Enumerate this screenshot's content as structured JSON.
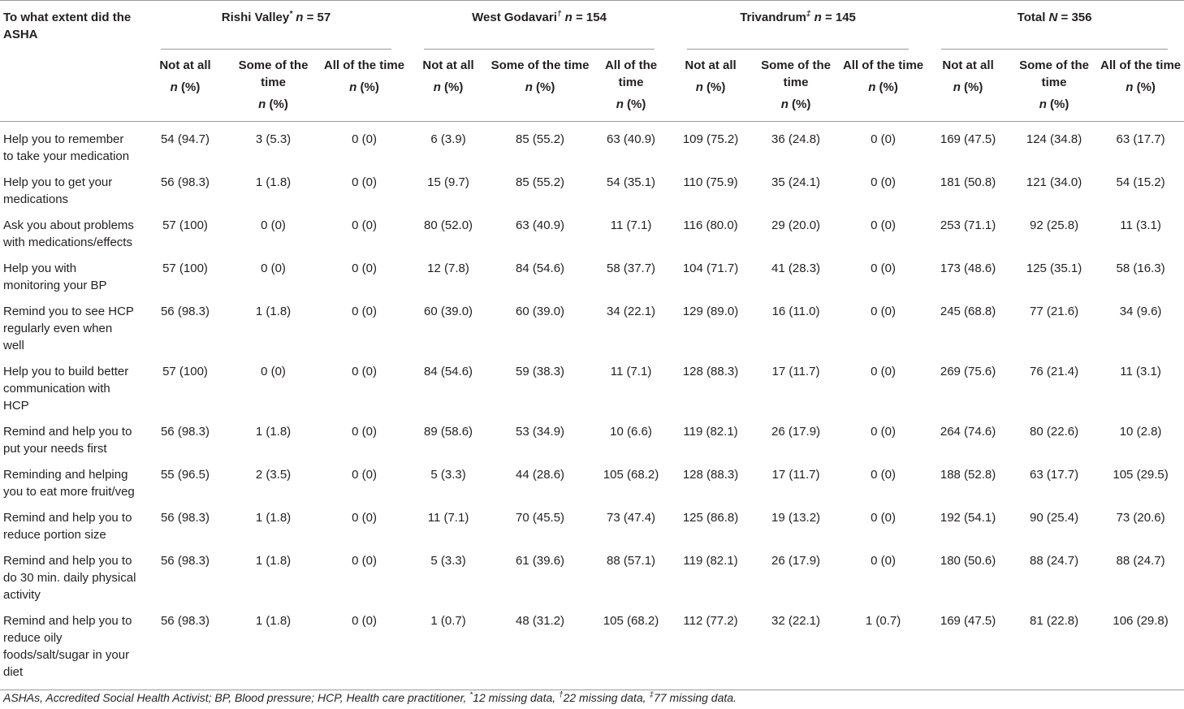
{
  "header": {
    "first_col": "To what extent did the ASHA",
    "groups": [
      {
        "name": "Rishi Valley",
        "mark": "*",
        "n_label": "n",
        "n_text": " = 57"
      },
      {
        "name": "West Godavari",
        "mark": "†",
        "n_label": "n",
        "n_text": " = 154"
      },
      {
        "name": "Trivandrum",
        "mark": "‡",
        "n_label": "n",
        "n_text": " = 145"
      },
      {
        "name": "Total ",
        "mark": "",
        "n_label": "N",
        "n_text": " = 356"
      }
    ],
    "sub": [
      "Not at all",
      "Some of the time",
      "All of the time"
    ],
    "npct_n": "n",
    "npct_pct": " (%)"
  },
  "rows": [
    {
      "label": "Help you to remember to take your medication",
      "values": [
        "54 (94.7)",
        "3 (5.3)",
        "0 (0)",
        "6 (3.9)",
        "85 (55.2)",
        "63 (40.9)",
        "109 (75.2)",
        "36 (24.8)",
        "0 (0)",
        "169 (47.5)",
        "124 (34.8)",
        "63 (17.7)"
      ]
    },
    {
      "label": "Help you to get your medications",
      "values": [
        "56 (98.3)",
        "1 (1.8)",
        "0 (0)",
        "15 (9.7)",
        "85 (55.2)",
        "54 (35.1)",
        "110 (75.9)",
        "35 (24.1)",
        "0 (0)",
        "181 (50.8)",
        "121 (34.0)",
        "54 (15.2)"
      ]
    },
    {
      "label": "Ask you about problems with medications/effects",
      "values": [
        "57 (100)",
        "0 (0)",
        "0 (0)",
        "80 (52.0)",
        "63 (40.9)",
        "11 (7.1)",
        "116 (80.0)",
        "29 (20.0)",
        "0 (0)",
        "253 (71.1)",
        "92 (25.8)",
        "11 (3.1)"
      ]
    },
    {
      "label": "Help you with monitoring your BP",
      "values": [
        "57 (100)",
        "0 (0)",
        "0 (0)",
        "12 (7.8)",
        "84 (54.6)",
        "58 (37.7)",
        "104 (71.7)",
        "41 (28.3)",
        "0 (0)",
        "173 (48.6)",
        "125 (35.1)",
        "58 (16.3)"
      ]
    },
    {
      "label": "Remind you to see HCP regularly even when well",
      "values": [
        "56 (98.3)",
        "1 (1.8)",
        "0 (0)",
        "60 (39.0)",
        "60 (39.0)",
        "34 (22.1)",
        "129 (89.0)",
        "16 (11.0)",
        "0 (0)",
        "245 (68.8)",
        "77 (21.6)",
        "34 (9.6)"
      ]
    },
    {
      "label": "Help you to build better communication with HCP",
      "values": [
        "57 (100)",
        "0 (0)",
        "0 (0)",
        "84 (54.6)",
        "59 (38.3)",
        "11 (7.1)",
        "128 (88.3)",
        "17 (11.7)",
        "0 (0)",
        "269 (75.6)",
        "76 (21.4)",
        "11 (3.1)"
      ]
    },
    {
      "label": "Remind and help you to put your needs first",
      "values": [
        "56 (98.3)",
        "1 (1.8)",
        "0 (0)",
        "89 (58.6)",
        "53 (34.9)",
        "10 (6.6)",
        "119 (82.1)",
        "26 (17.9)",
        "0 (0)",
        "264 (74.6)",
        "80 (22.6)",
        "10 (2.8)"
      ]
    },
    {
      "label": "Reminding and helping you to eat more fruit/veg",
      "values": [
        "55 (96.5)",
        "2 (3.5)",
        "0 (0)",
        "5 (3.3)",
        "44 (28.6)",
        "105 (68.2)",
        "128 (88.3)",
        "17 (11.7)",
        "0 (0)",
        "188 (52.8)",
        "63 (17.7)",
        "105 (29.5)"
      ]
    },
    {
      "label": "Remind and help you to reduce portion size",
      "values": [
        "56 (98.3)",
        "1 (1.8)",
        "0 (0)",
        "11 (7.1)",
        "70 (45.5)",
        "73 (47.4)",
        "125 (86.8)",
        "19 (13.2)",
        "0 (0)",
        "192 (54.1)",
        "90 (25.4)",
        "73 (20.6)"
      ]
    },
    {
      "label": "Remind and help you to do 30 min. daily physical activity",
      "values": [
        "56 (98.3)",
        "1 (1.8)",
        "0 (0)",
        "5 (3.3)",
        "61 (39.6)",
        "88 (57.1)",
        "119 (82.1)",
        "26 (17.9)",
        "0 (0)",
        "180 (50.6)",
        "88 (24.7)",
        "88 (24.7)"
      ]
    },
    {
      "label": "Remind and help you to reduce oily foods/salt/sugar in your diet",
      "values": [
        "56 (98.3)",
        "1 (1.8)",
        "0 (0)",
        "1 (0.7)",
        "48 (31.2)",
        "105 (68.2)",
        "112 (77.2)",
        "32 (22.1)",
        "1 (0.7)",
        "169 (47.5)",
        "81 (22.8)",
        "106 (29.8)"
      ]
    }
  ],
  "footnote": {
    "main": "ASHAs, Accredited Social Health Activist; BP, Blood pressure; HCP, Health care practitioner, ",
    "m1": "*",
    "t1": "12 missing data, ",
    "m2": "†",
    "t2": "22 missing data, ",
    "m3": "‡",
    "t3": "77 missing data."
  }
}
